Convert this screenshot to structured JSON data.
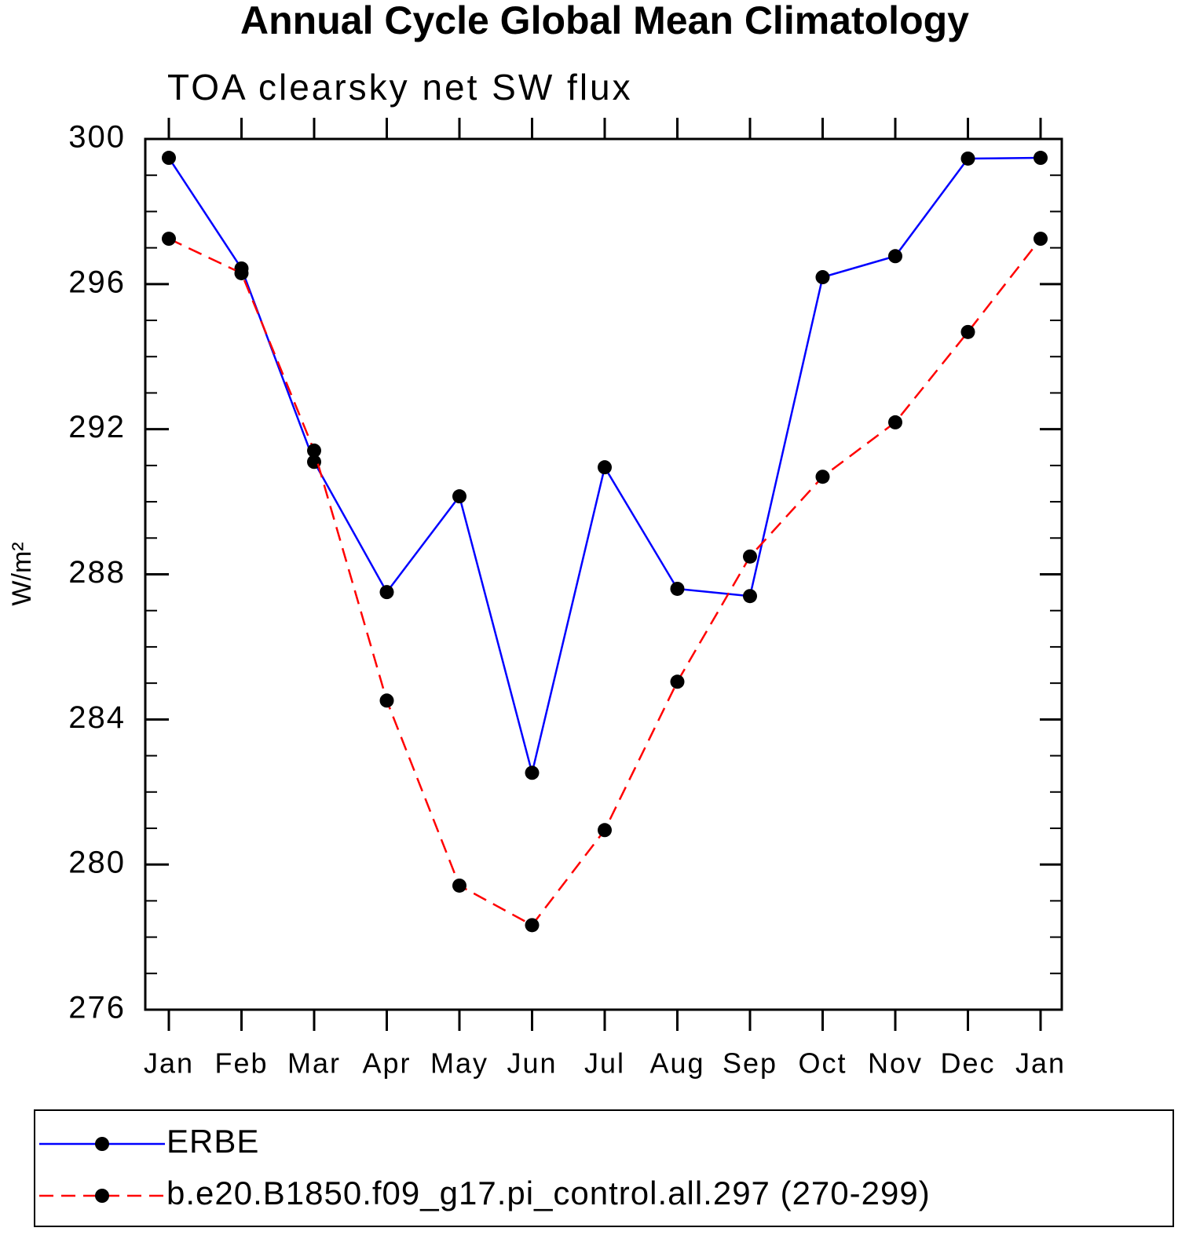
{
  "chart_data": {
    "type": "line",
    "title": "Annual Cycle Global Mean Climatology",
    "subtitle": "TOA clearsky net SW flux",
    "ylabel": "W/m²",
    "categories": [
      "Jan",
      "Feb",
      "Mar",
      "Apr",
      "May",
      "Jun",
      "Jul",
      "Aug",
      "Sep",
      "Oct",
      "Nov",
      "Dec",
      "Jan"
    ],
    "series": [
      {
        "name": "ERBE",
        "color": "#0000ff",
        "dash": false,
        "values": [
          299.48,
          296.43,
          291.1,
          287.51,
          290.15,
          282.53,
          290.95,
          287.6,
          287.4,
          296.19,
          296.77,
          299.46,
          299.48
        ]
      },
      {
        "name": "b.e20.B1850.f09_g17.pi_control.all.297 (270-299)",
        "color": "#ff0000",
        "dash": true,
        "values": [
          297.25,
          296.3,
          291.41,
          284.52,
          279.42,
          278.33,
          280.95,
          285.04,
          288.49,
          290.69,
          292.19,
          294.68,
          297.25
        ]
      }
    ],
    "ylim": [
      276,
      300
    ],
    "yticks": [
      276,
      280,
      284,
      288,
      292,
      296,
      300
    ],
    "y_minor_interval": 1,
    "markers": true,
    "legend": "bottom"
  }
}
